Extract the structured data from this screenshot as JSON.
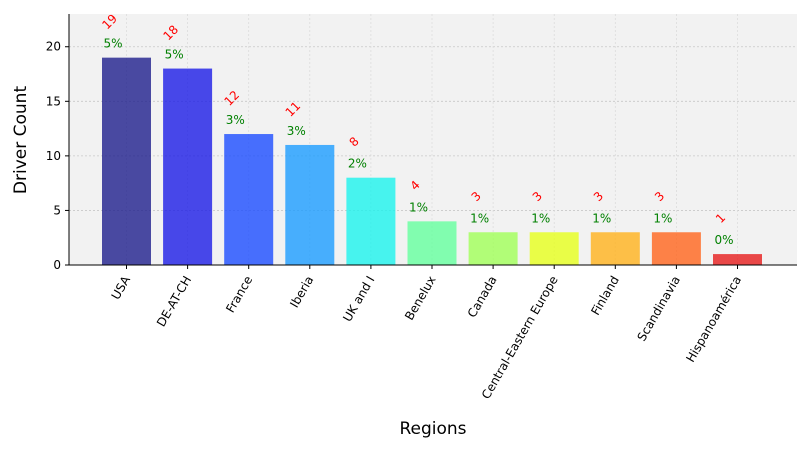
{
  "chart_data": {
    "type": "bar",
    "categories": [
      "USA",
      "DE-AT-CH",
      "France",
      "Iberia",
      "UK and I",
      "Benelux",
      "Canada",
      "Central-Eastern Europe",
      "Finland",
      "Scandinavia",
      "Hispanoamérica"
    ],
    "values": [
      19,
      18,
      12,
      11,
      8,
      4,
      3,
      3,
      3,
      3,
      1
    ],
    "percent_labels": [
      "5%",
      "5%",
      "3%",
      "3%",
      "2%",
      "1%",
      "1%",
      "1%",
      "1%",
      "1%",
      "0%"
    ],
    "count_labels": [
      "19",
      "18",
      "12",
      "11",
      "8",
      "4",
      "3",
      "3",
      "3",
      "3",
      "1"
    ],
    "bar_colors": [
      "#1e1e8c",
      "#1c1ce6",
      "#1c4cff",
      "#1c9cff",
      "#1cf2ec",
      "#64ff9e",
      "#a0ff58",
      "#e6ff1c",
      "#ffb21c",
      "#ff641c",
      "#e61c1c"
    ],
    "title": "",
    "xlabel": "Regions",
    "ylabel": "Driver Count",
    "ylim": [
      0,
      23
    ],
    "yticks": [
      0,
      5,
      10,
      15,
      20
    ],
    "ytick_labels": [
      "0",
      "5",
      "10",
      "15",
      "20"
    ],
    "grid": true,
    "plot_background": "#f2f2f2",
    "percent_label_color": "#008000",
    "count_label_color": "#ff0000"
  }
}
